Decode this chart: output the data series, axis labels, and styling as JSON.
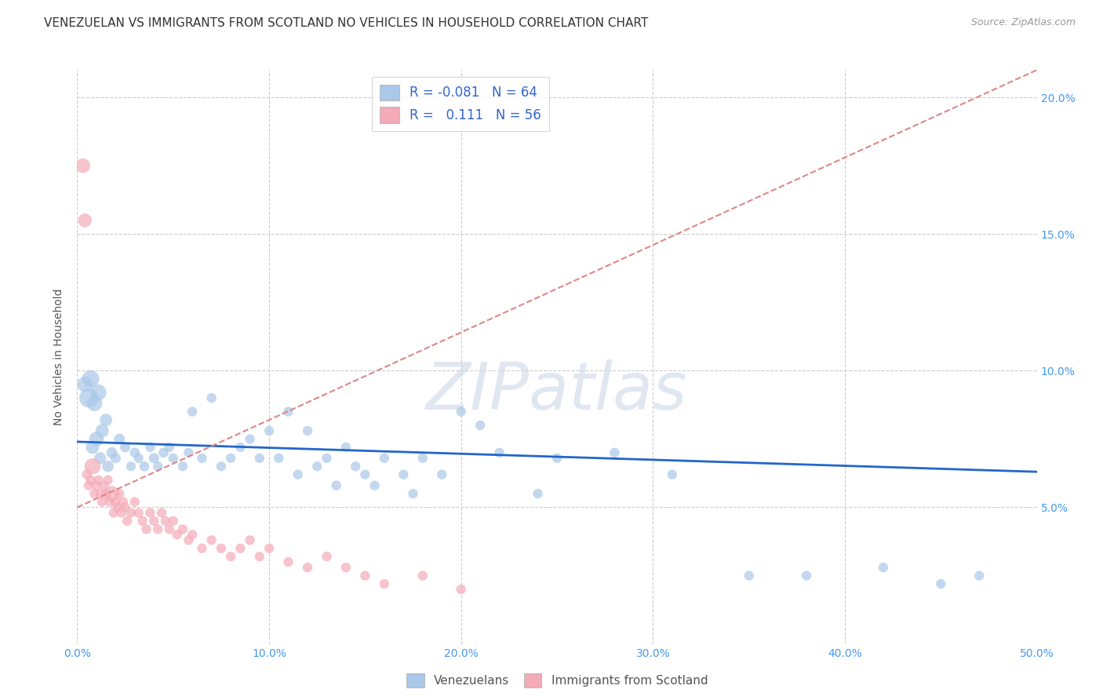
{
  "title": "VENEZUELAN VS IMMIGRANTS FROM SCOTLAND NO VEHICLES IN HOUSEHOLD CORRELATION CHART",
  "source": "Source: ZipAtlas.com",
  "ylabel": "No Vehicles in Household",
  "xlim": [
    0,
    0.5
  ],
  "ylim": [
    0,
    0.21
  ],
  "xticks": [
    0.0,
    0.1,
    0.2,
    0.3,
    0.4,
    0.5
  ],
  "xticklabels": [
    "0.0%",
    "10.0%",
    "20.0%",
    "30.0%",
    "40.0%",
    "50.0%"
  ],
  "yticks": [
    0.05,
    0.1,
    0.15,
    0.2
  ],
  "yticklabels": [
    "5.0%",
    "10.0%",
    "15.0%",
    "20.0%"
  ],
  "legend_r_blue": "-0.081",
  "legend_n_blue": "64",
  "legend_r_pink": "0.111",
  "legend_n_pink": "56",
  "blue_color": "#aac8e8",
  "pink_color": "#f5aab8",
  "line_blue_color": "#2266cc",
  "line_pink_color": "#dd8888",
  "watermark_text": "ZIPatlas",
  "blue_scatter_x": [
    0.004,
    0.006,
    0.007,
    0.008,
    0.009,
    0.01,
    0.011,
    0.012,
    0.013,
    0.015,
    0.016,
    0.018,
    0.02,
    0.022,
    0.025,
    0.028,
    0.03,
    0.032,
    0.035,
    0.038,
    0.04,
    0.042,
    0.045,
    0.048,
    0.05,
    0.055,
    0.058,
    0.06,
    0.065,
    0.07,
    0.075,
    0.08,
    0.085,
    0.09,
    0.095,
    0.1,
    0.105,
    0.11,
    0.115,
    0.12,
    0.125,
    0.13,
    0.135,
    0.14,
    0.145,
    0.15,
    0.155,
    0.16,
    0.17,
    0.175,
    0.18,
    0.19,
    0.2,
    0.21,
    0.22,
    0.24,
    0.25,
    0.28,
    0.31,
    0.35,
    0.38,
    0.42,
    0.45,
    0.47
  ],
  "blue_scatter_y": [
    0.095,
    0.09,
    0.097,
    0.072,
    0.088,
    0.075,
    0.092,
    0.068,
    0.078,
    0.082,
    0.065,
    0.07,
    0.068,
    0.075,
    0.072,
    0.065,
    0.07,
    0.068,
    0.065,
    0.072,
    0.068,
    0.065,
    0.07,
    0.072,
    0.068,
    0.065,
    0.07,
    0.085,
    0.068,
    0.09,
    0.065,
    0.068,
    0.072,
    0.075,
    0.068,
    0.078,
    0.068,
    0.085,
    0.062,
    0.078,
    0.065,
    0.068,
    0.058,
    0.072,
    0.065,
    0.062,
    0.058,
    0.068,
    0.062,
    0.055,
    0.068,
    0.062,
    0.085,
    0.08,
    0.07,
    0.055,
    0.068,
    0.07,
    0.062,
    0.025,
    0.025,
    0.028,
    0.022,
    0.025
  ],
  "blue_scatter_sizes": [
    200,
    300,
    250,
    150,
    200,
    180,
    220,
    120,
    150,
    130,
    110,
    100,
    90,
    100,
    90,
    80,
    85,
    80,
    85,
    80,
    90,
    80,
    85,
    80,
    80,
    80,
    80,
    80,
    80,
    80,
    80,
    80,
    80,
    80,
    80,
    80,
    80,
    80,
    80,
    80,
    80,
    80,
    80,
    80,
    80,
    80,
    80,
    80,
    80,
    80,
    80,
    80,
    80,
    80,
    80,
    80,
    80,
    80,
    80,
    80,
    80,
    80,
    80,
    80
  ],
  "pink_scatter_x": [
    0.003,
    0.004,
    0.005,
    0.006,
    0.007,
    0.008,
    0.009,
    0.01,
    0.011,
    0.012,
    0.013,
    0.014,
    0.015,
    0.016,
    0.017,
    0.018,
    0.019,
    0.02,
    0.021,
    0.022,
    0.023,
    0.024,
    0.025,
    0.026,
    0.028,
    0.03,
    0.032,
    0.034,
    0.036,
    0.038,
    0.04,
    0.042,
    0.044,
    0.046,
    0.048,
    0.05,
    0.052,
    0.055,
    0.058,
    0.06,
    0.065,
    0.07,
    0.075,
    0.08,
    0.085,
    0.09,
    0.095,
    0.1,
    0.11,
    0.12,
    0.13,
    0.14,
    0.15,
    0.16,
    0.18,
    0.2
  ],
  "pink_scatter_y": [
    0.175,
    0.155,
    0.062,
    0.058,
    0.06,
    0.065,
    0.055,
    0.058,
    0.06,
    0.055,
    0.052,
    0.058,
    0.055,
    0.06,
    0.052,
    0.055,
    0.048,
    0.052,
    0.05,
    0.055,
    0.048,
    0.052,
    0.05,
    0.045,
    0.048,
    0.052,
    0.048,
    0.045,
    0.042,
    0.048,
    0.045,
    0.042,
    0.048,
    0.045,
    0.042,
    0.045,
    0.04,
    0.042,
    0.038,
    0.04,
    0.035,
    0.038,
    0.035,
    0.032,
    0.035,
    0.038,
    0.032,
    0.035,
    0.03,
    0.028,
    0.032,
    0.028,
    0.025,
    0.022,
    0.025,
    0.02
  ],
  "pink_scatter_sizes": [
    180,
    160,
    80,
    80,
    80,
    220,
    80,
    80,
    80,
    80,
    80,
    80,
    80,
    80,
    80,
    200,
    80,
    80,
    80,
    80,
    80,
    80,
    80,
    80,
    80,
    80,
    80,
    80,
    80,
    80,
    80,
    80,
    80,
    80,
    80,
    80,
    80,
    80,
    80,
    80,
    80,
    80,
    80,
    80,
    80,
    80,
    80,
    80,
    80,
    80,
    80,
    80,
    80,
    80,
    80,
    80
  ],
  "blue_line_x": [
    0.0,
    0.5
  ],
  "blue_line_y": [
    0.074,
    0.063
  ],
  "pink_line_x": [
    0.0,
    0.5
  ],
  "pink_line_y": [
    0.05,
    0.21
  ],
  "background_color": "#ffffff",
  "grid_color": "#cccccc",
  "title_fontsize": 11,
  "axis_label_fontsize": 10,
  "tick_fontsize": 10,
  "legend_fontsize": 12
}
